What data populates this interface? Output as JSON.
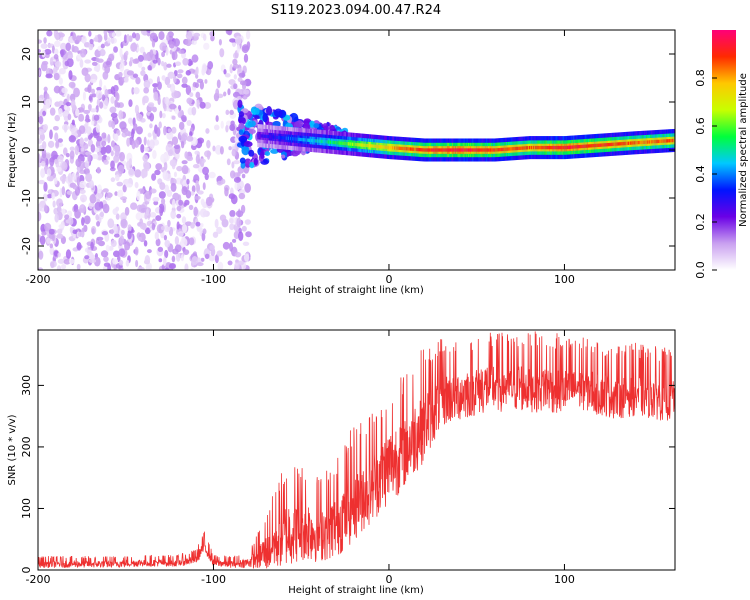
{
  "title": "S119.2023.094.00.47.R24",
  "chart_data": [
    {
      "type": "heatmap",
      "xlabel": "Height of straight line (km)",
      "ylabel": "Frequency (Hz)",
      "xlim": [
        -200,
        163
      ],
      "ylim": [
        -25,
        25
      ],
      "x_ticks": [
        -200,
        -100,
        0,
        100
      ],
      "y_ticks": [
        -20,
        -10,
        0,
        10,
        20
      ],
      "colorbar": {
        "label": "Normalized spectral amplitude",
        "range": [
          0,
          1
        ],
        "ticks": [
          "0.0",
          "0.2",
          "0.4",
          "0.6",
          "0.8"
        ],
        "colors": [
          "#ffffff",
          "#c9a0f0",
          "#6a00e6",
          "#0014ff",
          "#00c8ff",
          "#00ff3c",
          "#c8ff00",
          "#ffc800",
          "#ff2a00",
          "#ff0078"
        ]
      },
      "signal_ridge": {
        "x": [
          -75,
          -60,
          -45,
          -30,
          -15,
          0,
          20,
          40,
          60,
          80,
          100,
          120,
          140,
          163
        ],
        "frequency_hz": [
          3,
          2.5,
          2,
          1.5,
          1,
          0.5,
          0,
          0,
          0,
          0.5,
          0.5,
          1,
          1.5,
          2
        ],
        "amplitude": [
          0.25,
          0.35,
          0.45,
          0.55,
          0.7,
          0.8,
          0.9,
          0.95,
          0.9,
          0.85,
          0.95,
          0.9,
          0.85,
          0.85
        ]
      },
      "noise_region": {
        "x_range": [
          -200,
          -80
        ],
        "frequency_range_hz": [
          -25,
          25
        ],
        "amplitude_range": [
          0.02,
          0.15
        ]
      }
    },
    {
      "type": "line",
      "xlabel": "Height of straight line (km)",
      "ylabel": "SNR (10 * v/v)",
      "xlim": [
        -200,
        163
      ],
      "ylim": [
        0,
        390
      ],
      "x_ticks": [
        -200,
        -100,
        0,
        100
      ],
      "y_ticks": [
        0,
        100,
        200,
        300
      ],
      "color": "#ee3030",
      "series": [
        {
          "x": [
            -200,
            -180,
            -160,
            -140,
            -120,
            -110,
            -105,
            -100,
            -90,
            -80,
            -70,
            -60,
            -50,
            -40,
            -30,
            -20,
            -10,
            0,
            10,
            20,
            30,
            40,
            50,
            60,
            70,
            80,
            90,
            100,
            110,
            120,
            130,
            140,
            150,
            163
          ],
          "values": [
            10,
            10,
            10,
            12,
            12,
            18,
            40,
            12,
            10,
            12,
            30,
            60,
            70,
            60,
            75,
            110,
            140,
            170,
            200,
            240,
            280,
            285,
            295,
            300,
            300,
            300,
            300,
            295,
            300,
            290,
            285,
            290,
            285,
            280
          ],
          "spread": [
            8,
            8,
            8,
            8,
            8,
            10,
            15,
            8,
            8,
            10,
            40,
            70,
            70,
            60,
            70,
            80,
            80,
            80,
            80,
            80,
            60,
            55,
            55,
            55,
            55,
            55,
            55,
            55,
            50,
            50,
            50,
            50,
            50,
            50
          ]
        }
      ]
    }
  ]
}
